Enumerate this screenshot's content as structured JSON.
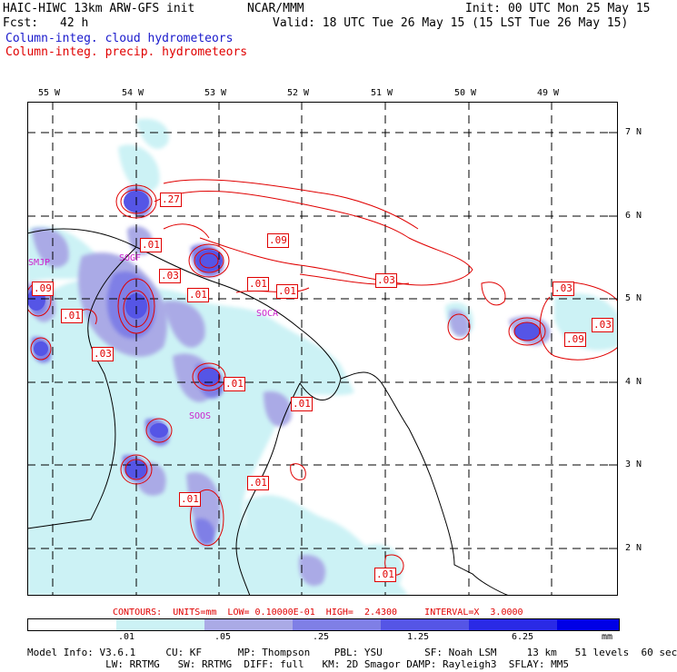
{
  "header": {
    "model": "HAIC-HIWC 13km ARW-GFS init",
    "org": "NCAR/MMM",
    "init": "Init: 00 UTC Mon 25 May 15",
    "fcst_label": "Fcst:",
    "fcst_value": "42 h",
    "valid": "Valid: 18 UTC Tue 26 May 15 (15 LST Tue 26 May 15)",
    "field1": "Column-integ. cloud hydrometeors",
    "field2": "Column-integ. precip. hydrometeors"
  },
  "map": {
    "lon_labels": [
      "55 W",
      "54 W",
      "53 W",
      "52 W",
      "51 W",
      "50 W",
      "49 W"
    ],
    "lat_labels": [
      "7 N",
      "6 N",
      "5 N",
      "4 N",
      "3 N",
      "2 N"
    ],
    "stations": [
      "SMJP",
      "SOGF",
      "SOCA",
      "SOOS"
    ],
    "contour_labels": [
      ".27",
      ".01",
      ".09",
      ".03",
      ".01",
      ".01",
      ".03",
      ".09",
      ".01",
      ".03",
      ".01",
      ".03",
      ".01",
      ".01",
      ".01",
      ".01",
      ".01",
      ".09",
      ".03"
    ]
  },
  "contour_info": "CONTOURS:  UNITS=mm  LOW= 0.10000E-01  HIGH=  2.4300     INTERVAL=X  3.0000",
  "colorbar": {
    "ticks": [
      ".01",
      ".05",
      ".25",
      "1.25",
      "6.25"
    ],
    "unit": "mm",
    "colors": [
      "#ffffff",
      "#ccf2f5",
      "#aaaae6",
      "#7f7fe6",
      "#5555e6",
      "#2a2ae6",
      "#0000e6"
    ]
  },
  "footer": {
    "line1": "Model Info: V3.6.1     CU: KF      MP: Thompson    PBL: YSU       SF: Noah LSM     13 km   51 levels  60 sec",
    "line2": "             LW: RRTMG   SW: RRTMG  DIFF: full   KM: 2D Smagor DAMP: Rayleigh3  SFLAY: MM5"
  }
}
